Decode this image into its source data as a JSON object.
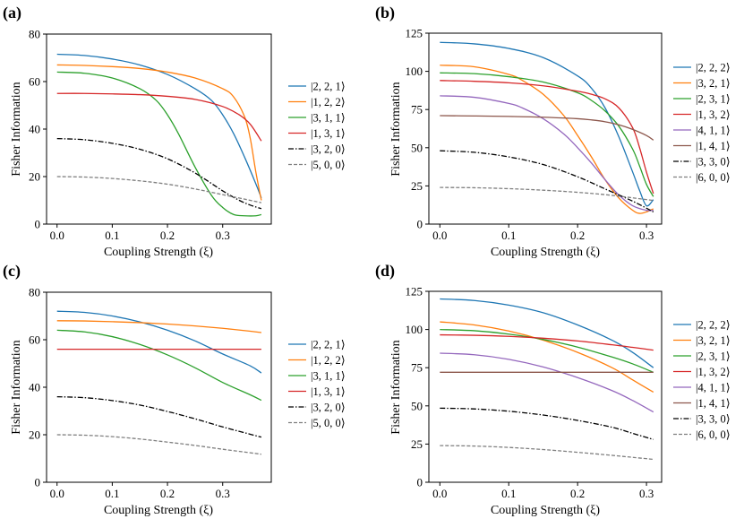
{
  "colors": {
    "blue": "#1f77b4",
    "orange": "#ff7f0e",
    "green": "#2ca02c",
    "red": "#d62728",
    "purple": "#9467bd",
    "brown": "#8c564b",
    "black": "#000000",
    "gray": "#7f7f7f"
  },
  "chart_data": [
    {
      "id": "a",
      "panel_label": "(a)",
      "type": "line",
      "xlabel": "Coupling Strength (ξ)",
      "ylabel": "Fisher Information",
      "xlim": [
        -0.019,
        0.388
      ],
      "ylim": [
        0,
        80
      ],
      "xticks": [
        0.0,
        0.1,
        0.2,
        0.3
      ],
      "xtick_labels": [
        "0.0",
        "0.1",
        "0.2",
        "0.3"
      ],
      "yticks": [
        0,
        20,
        40,
        60,
        80
      ],
      "ytick_labels": [
        "0",
        "20",
        "40",
        "60",
        "80"
      ],
      "legend_location": "right, outside",
      "series": [
        {
          "name": "|2, 2, 1⟩",
          "color": "blue",
          "style": "solid",
          "x": [
            0,
            0.05,
            0.1,
            0.15,
            0.2,
            0.25,
            0.28,
            0.3,
            0.32,
            0.34,
            0.36,
            0.37
          ],
          "y": [
            71.5,
            71,
            69.5,
            67,
            63,
            57,
            52,
            46,
            38,
            28,
            17,
            11
          ]
        },
        {
          "name": "|1, 2, 2⟩",
          "color": "orange",
          "style": "solid",
          "x": [
            0,
            0.05,
            0.1,
            0.15,
            0.2,
            0.25,
            0.3,
            0.32,
            0.34,
            0.35,
            0.36,
            0.37
          ],
          "y": [
            67,
            66.8,
            66.3,
            65.5,
            64,
            61.5,
            57,
            53.5,
            45,
            36,
            22,
            10
          ]
        },
        {
          "name": "|3, 1, 1⟩",
          "color": "green",
          "style": "solid",
          "x": [
            0,
            0.05,
            0.1,
            0.15,
            0.18,
            0.2,
            0.22,
            0.25,
            0.28,
            0.3,
            0.32,
            0.34,
            0.36,
            0.37
          ],
          "y": [
            64,
            63.5,
            61.5,
            57,
            52,
            46,
            38,
            24,
            12,
            7,
            4,
            3.5,
            3.5,
            4
          ]
        },
        {
          "name": "|1, 3, 1⟩",
          "color": "red",
          "style": "solid",
          "x": [
            0,
            0.05,
            0.1,
            0.15,
            0.2,
            0.25,
            0.3,
            0.33,
            0.35,
            0.37
          ],
          "y": [
            55,
            55,
            54.8,
            54.5,
            53.8,
            52.5,
            49.5,
            46,
            42,
            35
          ]
        },
        {
          "name": "|3, 2, 0⟩",
          "color": "black",
          "style": "dashdot",
          "x": [
            0,
            0.05,
            0.1,
            0.15,
            0.2,
            0.25,
            0.3,
            0.33,
            0.35,
            0.37
          ],
          "y": [
            36,
            35.5,
            34,
            31.5,
            27.5,
            21.5,
            14,
            10,
            8,
            6.5
          ]
        },
        {
          "name": "|5, 0, 0⟩",
          "color": "gray",
          "style": "dashed",
          "x": [
            0,
            0.05,
            0.1,
            0.15,
            0.2,
            0.25,
            0.3,
            0.35,
            0.37
          ],
          "y": [
            20,
            19.8,
            19.2,
            18.2,
            16.8,
            14.8,
            12.4,
            10,
            9
          ]
        }
      ]
    },
    {
      "id": "b",
      "panel_label": "(b)",
      "type": "line",
      "xlabel": "Coupling Strength (ξ)",
      "ylabel": "Fisher Information",
      "xlim": [
        -0.016,
        0.322
      ],
      "ylim": [
        0,
        125
      ],
      "xticks": [
        0.0,
        0.1,
        0.2,
        0.3
      ],
      "xtick_labels": [
        "0.0",
        "0.1",
        "0.2",
        "0.3"
      ],
      "yticks": [
        0,
        25,
        50,
        75,
        100,
        125
      ],
      "ytick_labels": [
        "0",
        "25",
        "50",
        "75",
        "100",
        "125"
      ],
      "legend_location": "right, outside",
      "series": [
        {
          "name": "|2, 2, 2⟩",
          "color": "blue",
          "style": "solid",
          "x": [
            0,
            0.05,
            0.1,
            0.15,
            0.2,
            0.22,
            0.24,
            0.26,
            0.28,
            0.29,
            0.3,
            0.31
          ],
          "y": [
            119,
            118,
            115,
            109,
            97,
            89,
            76,
            57,
            34,
            22,
            12,
            16
          ]
        },
        {
          "name": "|3, 2, 1⟩",
          "color": "orange",
          "style": "solid",
          "x": [
            0,
            0.05,
            0.1,
            0.12,
            0.15,
            0.18,
            0.2,
            0.22,
            0.24,
            0.26,
            0.28,
            0.29,
            0.3,
            0.31
          ],
          "y": [
            104,
            103,
            98,
            94,
            85,
            71,
            58,
            44,
            29,
            17,
            9,
            7,
            8,
            10
          ]
        },
        {
          "name": "|2, 3, 1⟩",
          "color": "green",
          "style": "solid",
          "x": [
            0,
            0.05,
            0.1,
            0.15,
            0.2,
            0.22,
            0.24,
            0.26,
            0.28,
            0.29,
            0.3,
            0.31
          ],
          "y": [
            99,
            98.5,
            96.5,
            93,
            86,
            81,
            74,
            64,
            49,
            38,
            26,
            18
          ]
        },
        {
          "name": "|1, 3, 2⟩",
          "color": "red",
          "style": "solid",
          "x": [
            0,
            0.05,
            0.1,
            0.15,
            0.2,
            0.22,
            0.24,
            0.26,
            0.28,
            0.29,
            0.3,
            0.31
          ],
          "y": [
            94,
            93.5,
            92.5,
            90.5,
            87,
            85,
            82,
            76,
            63,
            50,
            34,
            20
          ]
        },
        {
          "name": "|4, 1, 1⟩",
          "color": "purple",
          "style": "solid",
          "x": [
            0,
            0.05,
            0.1,
            0.12,
            0.15,
            0.18,
            0.2,
            0.22,
            0.24,
            0.26,
            0.28,
            0.3,
            0.31
          ],
          "y": [
            84,
            83,
            79,
            76,
            69,
            59,
            50,
            40,
            29,
            19,
            12,
            9,
            9
          ]
        },
        {
          "name": "|1, 4, 1⟩",
          "color": "brown",
          "style": "solid",
          "x": [
            0,
            0.05,
            0.1,
            0.15,
            0.2,
            0.22,
            0.24,
            0.26,
            0.28,
            0.3,
            0.31
          ],
          "y": [
            71,
            70.8,
            70.5,
            70,
            69,
            68.2,
            67,
            65,
            62,
            58,
            55
          ]
        },
        {
          "name": "|3, 3, 0⟩",
          "color": "black",
          "style": "dashdot",
          "x": [
            0,
            0.05,
            0.1,
            0.15,
            0.2,
            0.24,
            0.28,
            0.31
          ],
          "y": [
            48,
            47,
            44,
            39,
            31,
            23,
            15,
            8
          ]
        },
        {
          "name": "|6, 0, 0⟩",
          "color": "gray",
          "style": "dashed",
          "x": [
            0,
            0.05,
            0.1,
            0.15,
            0.2,
            0.25,
            0.31
          ],
          "y": [
            24,
            23.8,
            23.2,
            22.2,
            20.8,
            18.8,
            15.5
          ]
        }
      ]
    },
    {
      "id": "c",
      "panel_label": "(c)",
      "type": "line",
      "xlabel": "Coupling Strength (ξ)",
      "ylabel": "Fisher Information",
      "xlim": [
        -0.019,
        0.388
      ],
      "ylim": [
        0,
        80
      ],
      "xticks": [
        0.0,
        0.1,
        0.2,
        0.3
      ],
      "xtick_labels": [
        "0.0",
        "0.1",
        "0.2",
        "0.3"
      ],
      "yticks": [
        0,
        20,
        40,
        60,
        80
      ],
      "ytick_labels": [
        "0",
        "20",
        "40",
        "60",
        "80"
      ],
      "legend_location": "right, outside",
      "series": [
        {
          "name": "|2, 2, 1⟩",
          "color": "blue",
          "style": "solid",
          "x": [
            0,
            0.05,
            0.1,
            0.15,
            0.2,
            0.25,
            0.3,
            0.35,
            0.37
          ],
          "y": [
            72,
            71.5,
            70,
            67.5,
            64,
            59.5,
            54,
            49,
            46
          ]
        },
        {
          "name": "|1, 2, 2⟩",
          "color": "orange",
          "style": "solid",
          "x": [
            0,
            0.05,
            0.1,
            0.15,
            0.2,
            0.25,
            0.3,
            0.35,
            0.37
          ],
          "y": [
            68,
            67.9,
            67.6,
            67.2,
            66.6,
            65.8,
            64.8,
            63.6,
            63
          ]
        },
        {
          "name": "|3, 1, 1⟩",
          "color": "green",
          "style": "solid",
          "x": [
            0,
            0.05,
            0.1,
            0.15,
            0.2,
            0.25,
            0.3,
            0.35,
            0.37
          ],
          "y": [
            64,
            63.3,
            61.3,
            58,
            53.6,
            48.2,
            42,
            36.8,
            34.5
          ]
        },
        {
          "name": "|1, 3, 1⟩",
          "color": "red",
          "style": "solid",
          "x": [
            0,
            0.37
          ],
          "y": [
            56,
            56
          ]
        },
        {
          "name": "|3, 2, 0⟩",
          "color": "black",
          "style": "dashdot",
          "x": [
            0,
            0.05,
            0.1,
            0.15,
            0.2,
            0.25,
            0.3,
            0.35,
            0.37
          ],
          "y": [
            36,
            35.6,
            34.4,
            32.5,
            29.8,
            26.7,
            23.3,
            20.2,
            19
          ]
        },
        {
          "name": "|5, 0, 0⟩",
          "color": "gray",
          "style": "dashed",
          "x": [
            0,
            0.05,
            0.1,
            0.15,
            0.2,
            0.25,
            0.3,
            0.35,
            0.37
          ],
          "y": [
            20,
            19.8,
            19.2,
            18.2,
            16.9,
            15.5,
            13.9,
            12.4,
            11.8
          ]
        }
      ]
    },
    {
      "id": "d",
      "panel_label": "(d)",
      "type": "line",
      "xlabel": "Coupling Strength (ξ)",
      "ylabel": "Fisher Information",
      "xlim": [
        -0.016,
        0.322
      ],
      "ylim": [
        0,
        125
      ],
      "xticks": [
        0.0,
        0.1,
        0.2,
        0.3
      ],
      "xtick_labels": [
        "0.0",
        "0.1",
        "0.2",
        "0.3"
      ],
      "yticks": [
        0,
        25,
        50,
        75,
        100,
        125
      ],
      "ytick_labels": [
        "0",
        "25",
        "50",
        "75",
        "100",
        "125"
      ],
      "legend_location": "right, outside",
      "series": [
        {
          "name": "|2, 2, 2⟩",
          "color": "blue",
          "style": "solid",
          "x": [
            0,
            0.05,
            0.1,
            0.15,
            0.2,
            0.25,
            0.28,
            0.31
          ],
          "y": [
            120,
            119,
            116,
            111,
            103,
            93,
            85,
            75
          ]
        },
        {
          "name": "|3, 2, 1⟩",
          "color": "orange",
          "style": "solid",
          "x": [
            0,
            0.05,
            0.1,
            0.15,
            0.2,
            0.25,
            0.28,
            0.31
          ],
          "y": [
            105,
            103,
            99,
            93,
            85,
            75,
            67,
            59
          ]
        },
        {
          "name": "|2, 3, 1⟩",
          "color": "green",
          "style": "solid",
          "x": [
            0,
            0.05,
            0.1,
            0.15,
            0.2,
            0.25,
            0.28,
            0.31
          ],
          "y": [
            100,
            99.2,
            97,
            93.5,
            88.5,
            82,
            77.5,
            72
          ]
        },
        {
          "name": "|1, 3, 2⟩",
          "color": "red",
          "style": "solid",
          "x": [
            0,
            0.05,
            0.1,
            0.15,
            0.2,
            0.25,
            0.28,
            0.31
          ],
          "y": [
            96.5,
            96.2,
            95.5,
            94.3,
            92.5,
            90,
            88.3,
            86.5
          ]
        },
        {
          "name": "|4, 1, 1⟩",
          "color": "purple",
          "style": "solid",
          "x": [
            0,
            0.05,
            0.1,
            0.15,
            0.2,
            0.25,
            0.28,
            0.31
          ],
          "y": [
            84.5,
            83.5,
            80.5,
            75.5,
            68.5,
            60,
            53.5,
            46
          ]
        },
        {
          "name": "|1, 4, 1⟩",
          "color": "brown",
          "style": "solid",
          "x": [
            0,
            0.31
          ],
          "y": [
            72,
            72
          ]
        },
        {
          "name": "|3, 3, 0⟩",
          "color": "black",
          "style": "dashdot",
          "x": [
            0,
            0.05,
            0.1,
            0.15,
            0.2,
            0.25,
            0.28,
            0.31
          ],
          "y": [
            48.5,
            48,
            46.5,
            44,
            40.5,
            36,
            32,
            28
          ]
        },
        {
          "name": "|6, 0, 0⟩",
          "color": "gray",
          "style": "dashed",
          "x": [
            0,
            0.05,
            0.1,
            0.15,
            0.2,
            0.25,
            0.28,
            0.31
          ],
          "y": [
            24,
            23.7,
            22.8,
            21.4,
            19.6,
            17.6,
            16.3,
            15
          ]
        }
      ]
    }
  ]
}
